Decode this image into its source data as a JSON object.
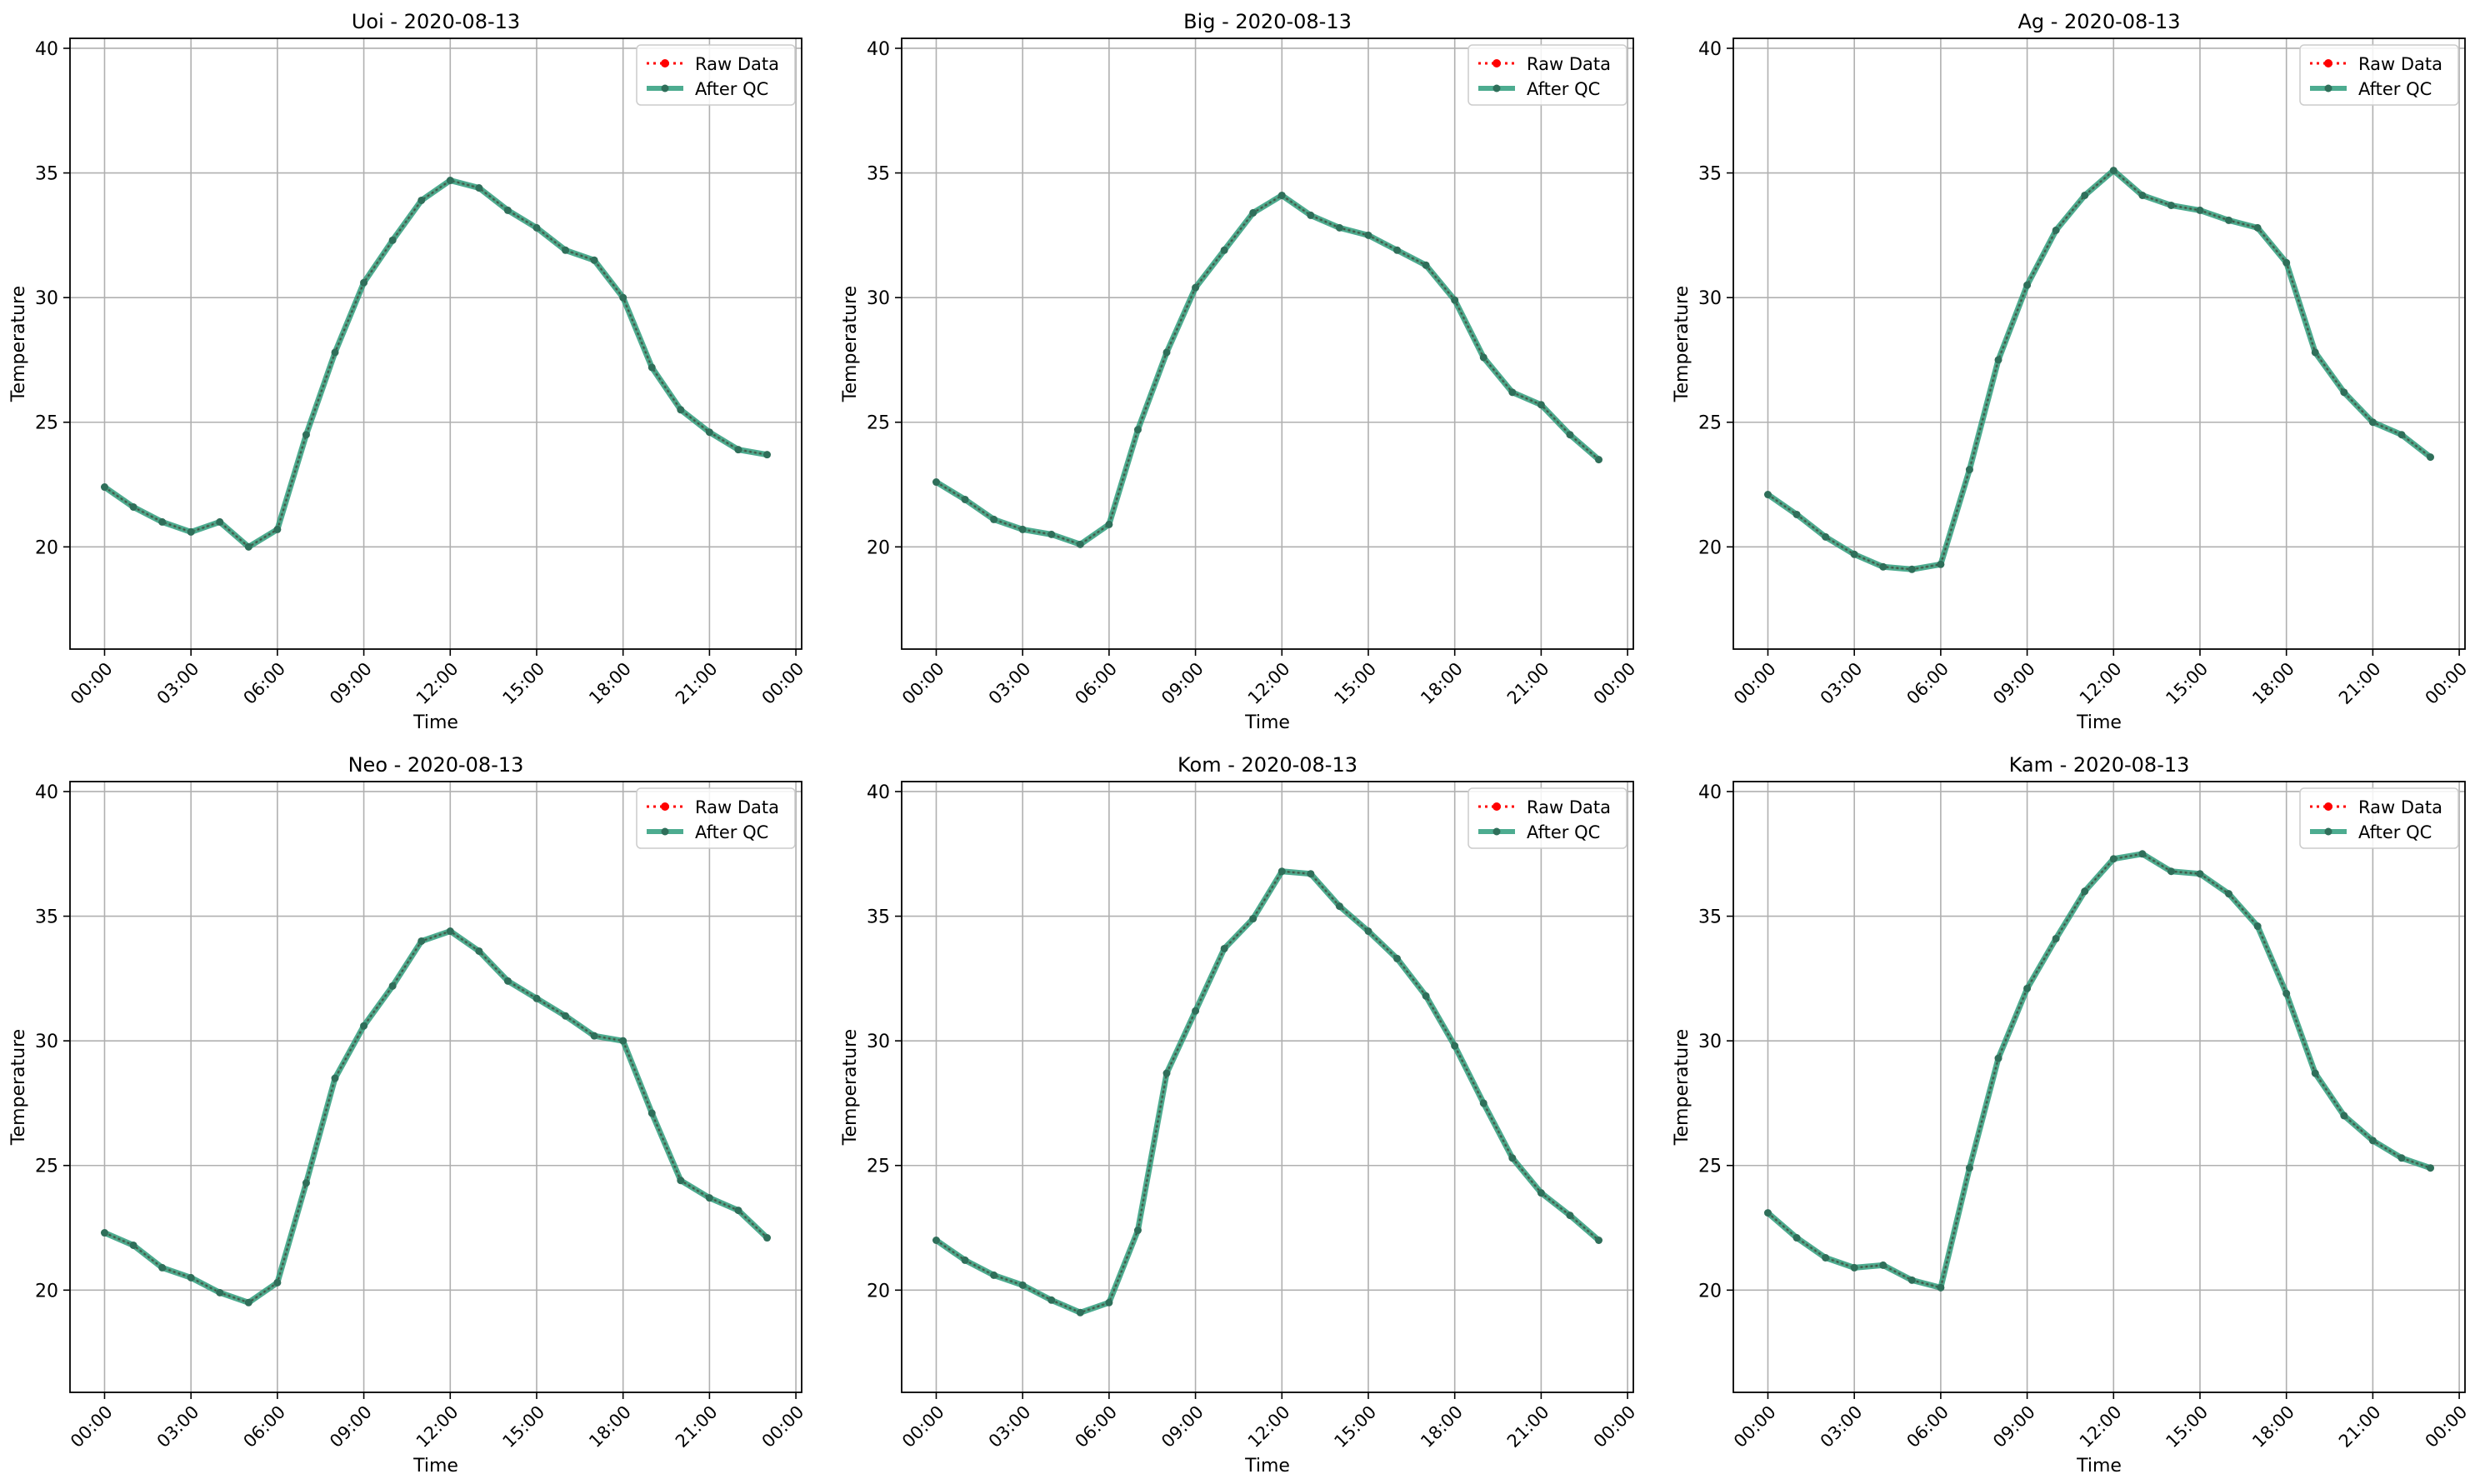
{
  "colors": {
    "raw": "#ff0000",
    "qc_line": "#2e9e7c",
    "qc_marker": "#2f6f5a",
    "grid": "#b0b0b0",
    "axis": "#000000"
  },
  "chart_data": [
    {
      "type": "line",
      "title": "Uoi - 2020-08-13",
      "xlabel": "Time",
      "ylabel": "Temperature",
      "xlim_hours": [
        -1.2,
        24.2
      ],
      "ylim": [
        15.9,
        40.4
      ],
      "xticks": [
        "00:00",
        "03:00",
        "06:00",
        "09:00",
        "12:00",
        "15:00",
        "18:00",
        "21:00",
        "00:00"
      ],
      "yticks": [
        20,
        25,
        30,
        35,
        40
      ],
      "grid": true,
      "legend": "top-right",
      "x_hours": [
        0,
        1,
        2,
        3,
        4,
        5,
        6,
        7,
        8,
        9,
        10,
        11,
        12,
        13,
        14,
        15,
        16,
        17,
        18,
        19,
        20,
        21,
        22,
        23
      ],
      "series": [
        {
          "name": "Raw Data",
          "style": "dotted-markers",
          "values": [
            22.4,
            21.6,
            21.0,
            20.6,
            21.0,
            20.0,
            20.7,
            24.5,
            27.8,
            30.6,
            32.3,
            33.9,
            34.7,
            34.4,
            33.5,
            32.8,
            31.9,
            31.5,
            30.0,
            27.2,
            25.5,
            24.6,
            23.9,
            23.7
          ]
        },
        {
          "name": "After QC",
          "style": "solid-markers",
          "values": [
            22.4,
            21.6,
            21.0,
            20.6,
            21.0,
            20.0,
            20.7,
            24.5,
            27.8,
            30.6,
            32.3,
            33.9,
            34.7,
            34.4,
            33.5,
            32.8,
            31.9,
            31.5,
            30.0,
            27.2,
            25.5,
            24.6,
            23.9,
            23.7
          ]
        }
      ]
    },
    {
      "type": "line",
      "title": "Big - 2020-08-13",
      "xlabel": "Time",
      "ylabel": "Temperature",
      "xlim_hours": [
        -1.2,
        24.2
      ],
      "ylim": [
        15.9,
        40.4
      ],
      "xticks": [
        "00:00",
        "03:00",
        "06:00",
        "09:00",
        "12:00",
        "15:00",
        "18:00",
        "21:00",
        "00:00"
      ],
      "yticks": [
        20,
        25,
        30,
        35,
        40
      ],
      "grid": true,
      "legend": "top-right",
      "x_hours": [
        0,
        1,
        2,
        3,
        4,
        5,
        6,
        7,
        8,
        9,
        10,
        11,
        12,
        13,
        14,
        15,
        16,
        17,
        18,
        19,
        20,
        21,
        22,
        23
      ],
      "series": [
        {
          "name": "Raw Data",
          "style": "dotted-markers",
          "values": [
            22.6,
            21.9,
            21.1,
            20.7,
            20.5,
            20.1,
            20.9,
            24.7,
            27.8,
            30.4,
            31.9,
            33.4,
            34.1,
            33.3,
            32.8,
            32.5,
            31.9,
            31.3,
            29.9,
            27.6,
            26.2,
            25.7,
            24.5,
            23.5
          ]
        },
        {
          "name": "After QC",
          "style": "solid-markers",
          "values": [
            22.6,
            21.9,
            21.1,
            20.7,
            20.5,
            20.1,
            20.9,
            24.7,
            27.8,
            30.4,
            31.9,
            33.4,
            34.1,
            33.3,
            32.8,
            32.5,
            31.9,
            31.3,
            29.9,
            27.6,
            26.2,
            25.7,
            24.5,
            23.5
          ]
        }
      ]
    },
    {
      "type": "line",
      "title": "Ag - 2020-08-13",
      "xlabel": "Time",
      "ylabel": "Temperature",
      "xlim_hours": [
        -1.2,
        24.2
      ],
      "ylim": [
        15.9,
        40.4
      ],
      "xticks": [
        "00:00",
        "03:00",
        "06:00",
        "09:00",
        "12:00",
        "15:00",
        "18:00",
        "21:00",
        "00:00"
      ],
      "yticks": [
        20,
        25,
        30,
        35,
        40
      ],
      "grid": true,
      "legend": "top-right",
      "x_hours": [
        0,
        1,
        2,
        3,
        4,
        5,
        6,
        7,
        8,
        9,
        10,
        11,
        12,
        13,
        14,
        15,
        16,
        17,
        18,
        19,
        20,
        21,
        22,
        23
      ],
      "series": [
        {
          "name": "Raw Data",
          "style": "dotted-markers",
          "values": [
            22.1,
            21.3,
            20.4,
            19.7,
            19.2,
            19.1,
            19.3,
            23.1,
            27.5,
            30.5,
            32.7,
            34.1,
            35.1,
            34.1,
            33.7,
            33.5,
            33.1,
            32.8,
            31.4,
            27.8,
            26.2,
            25.0,
            24.5,
            23.6
          ]
        },
        {
          "name": "After QC",
          "style": "solid-markers",
          "values": [
            22.1,
            21.3,
            20.4,
            19.7,
            19.2,
            19.1,
            19.3,
            23.1,
            27.5,
            30.5,
            32.7,
            34.1,
            35.1,
            34.1,
            33.7,
            33.5,
            33.1,
            32.8,
            31.4,
            27.8,
            26.2,
            25.0,
            24.5,
            23.6
          ]
        }
      ]
    },
    {
      "type": "line",
      "title": "Neo - 2020-08-13",
      "xlabel": "Time",
      "ylabel": "Temperature",
      "xlim_hours": [
        -1.2,
        24.2
      ],
      "ylim": [
        15.9,
        40.4
      ],
      "xticks": [
        "00:00",
        "03:00",
        "06:00",
        "09:00",
        "12:00",
        "15:00",
        "18:00",
        "21:00",
        "00:00"
      ],
      "yticks": [
        20,
        25,
        30,
        35,
        40
      ],
      "grid": true,
      "legend": "top-right",
      "x_hours": [
        0,
        1,
        2,
        3,
        4,
        5,
        6,
        7,
        8,
        9,
        10,
        11,
        12,
        13,
        14,
        15,
        16,
        17,
        18,
        19,
        20,
        21,
        22,
        23
      ],
      "series": [
        {
          "name": "Raw Data",
          "style": "dotted-markers",
          "values": [
            22.3,
            21.8,
            20.9,
            20.5,
            19.9,
            19.5,
            20.3,
            24.3,
            28.5,
            30.6,
            32.2,
            34.0,
            34.4,
            33.6,
            32.4,
            31.7,
            31.0,
            30.2,
            30.0,
            27.1,
            24.4,
            23.7,
            23.2,
            22.1
          ]
        },
        {
          "name": "After QC",
          "style": "solid-markers",
          "values": [
            22.3,
            21.8,
            20.9,
            20.5,
            19.9,
            19.5,
            20.3,
            24.3,
            28.5,
            30.6,
            32.2,
            34.0,
            34.4,
            33.6,
            32.4,
            31.7,
            31.0,
            30.2,
            30.0,
            27.1,
            24.4,
            23.7,
            23.2,
            22.1
          ]
        }
      ]
    },
    {
      "type": "line",
      "title": "Kom - 2020-08-13",
      "xlabel": "Time",
      "ylabel": "Temperature",
      "xlim_hours": [
        -1.2,
        24.2
      ],
      "ylim": [
        15.9,
        40.4
      ],
      "xticks": [
        "00:00",
        "03:00",
        "06:00",
        "09:00",
        "12:00",
        "15:00",
        "18:00",
        "21:00",
        "00:00"
      ],
      "yticks": [
        20,
        25,
        30,
        35,
        40
      ],
      "grid": true,
      "legend": "top-right",
      "x_hours": [
        0,
        1,
        2,
        3,
        4,
        5,
        6,
        7,
        8,
        9,
        10,
        11,
        12,
        13,
        14,
        15,
        16,
        17,
        18,
        19,
        20,
        21,
        22,
        23
      ],
      "series": [
        {
          "name": "Raw Data",
          "style": "dotted-markers",
          "values": [
            22.0,
            21.2,
            20.6,
            20.2,
            19.6,
            19.1,
            19.5,
            22.4,
            28.7,
            31.2,
            33.7,
            34.9,
            36.8,
            36.7,
            35.4,
            34.4,
            33.3,
            31.8,
            29.8,
            27.5,
            25.3,
            23.9,
            23.0,
            22.0
          ]
        },
        {
          "name": "After QC",
          "style": "solid-markers",
          "values": [
            22.0,
            21.2,
            20.6,
            20.2,
            19.6,
            19.1,
            19.5,
            22.4,
            28.7,
            31.2,
            33.7,
            34.9,
            36.8,
            36.7,
            35.4,
            34.4,
            33.3,
            31.8,
            29.8,
            27.5,
            25.3,
            23.9,
            23.0,
            22.0
          ]
        }
      ]
    },
    {
      "type": "line",
      "title": "Kam - 2020-08-13",
      "xlabel": "Time",
      "ylabel": "Temperature",
      "xlim_hours": [
        -1.2,
        24.2
      ],
      "ylim": [
        15.9,
        40.4
      ],
      "xticks": [
        "00:00",
        "03:00",
        "06:00",
        "09:00",
        "12:00",
        "15:00",
        "18:00",
        "21:00",
        "00:00"
      ],
      "yticks": [
        20,
        25,
        30,
        35,
        40
      ],
      "grid": true,
      "legend": "top-right",
      "x_hours": [
        0,
        1,
        2,
        3,
        4,
        5,
        6,
        7,
        8,
        9,
        10,
        11,
        12,
        13,
        14,
        15,
        16,
        17,
        18,
        19,
        20,
        21,
        22,
        23
      ],
      "series": [
        {
          "name": "Raw Data",
          "style": "dotted-markers",
          "values": [
            23.1,
            22.1,
            21.3,
            20.9,
            21.0,
            20.4,
            20.1,
            24.9,
            29.3,
            32.1,
            34.1,
            36.0,
            37.3,
            37.5,
            36.8,
            36.7,
            35.9,
            34.6,
            31.9,
            28.7,
            27.0,
            26.0,
            25.3,
            24.9
          ]
        },
        {
          "name": "After QC",
          "style": "solid-markers",
          "values": [
            23.1,
            22.1,
            21.3,
            20.9,
            21.0,
            20.4,
            20.1,
            24.9,
            29.3,
            32.1,
            34.1,
            36.0,
            37.3,
            37.5,
            36.8,
            36.7,
            35.9,
            34.6,
            31.9,
            28.7,
            27.0,
            26.0,
            25.3,
            24.9
          ]
        }
      ]
    }
  ]
}
